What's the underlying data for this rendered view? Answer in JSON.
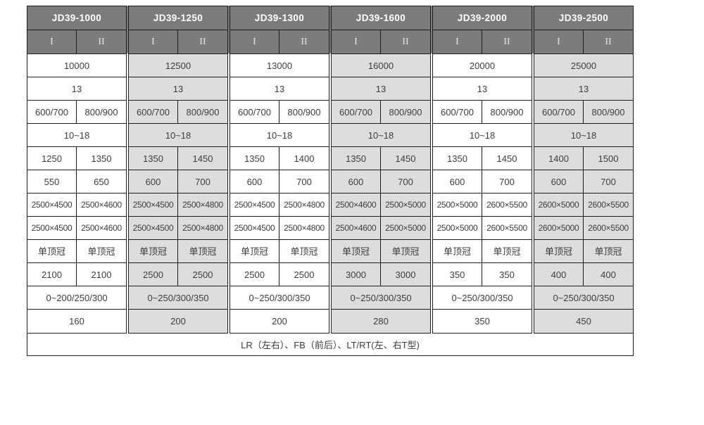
{
  "chart_data": {
    "type": "table",
    "column_groups": [
      {
        "model": "JD39-1000",
        "subcolumns": [
          "I",
          "II"
        ],
        "shaded": false
      },
      {
        "model": "JD39-1250",
        "subcolumns": [
          "I",
          "II"
        ],
        "shaded": true
      },
      {
        "model": "JD39-1300",
        "subcolumns": [
          "I",
          "II"
        ],
        "shaded": false
      },
      {
        "model": "JD39-1600",
        "subcolumns": [
          "I",
          "II"
        ],
        "shaded": true
      },
      {
        "model": "JD39-2000",
        "subcolumns": [
          "I",
          "II"
        ],
        "shaded": false
      },
      {
        "model": "JD39-2500",
        "subcolumns": [
          "I",
          "II"
        ],
        "shaded": true
      }
    ],
    "rows": [
      {
        "merged": true,
        "values": [
          "10000",
          "12500",
          "13000",
          "16000",
          "20000",
          "25000"
        ]
      },
      {
        "merged": true,
        "values": [
          "13",
          "13",
          "13",
          "13",
          "13",
          "13"
        ]
      },
      {
        "merged": false,
        "values": [
          [
            "600/700",
            "800/900"
          ],
          [
            "600/700",
            "800/900"
          ],
          [
            "600/700",
            "800/900"
          ],
          [
            "600/700",
            "800/900"
          ],
          [
            "600/700",
            "800/900"
          ],
          [
            "600/700",
            "800/900"
          ]
        ]
      },
      {
        "merged": true,
        "values": [
          "10~18",
          "10~18",
          "10~18",
          "10~18",
          "10~18",
          "10~18"
        ]
      },
      {
        "merged": false,
        "values": [
          [
            "1250",
            "1350"
          ],
          [
            "1350",
            "1450"
          ],
          [
            "1350",
            "1400"
          ],
          [
            "1350",
            "1450"
          ],
          [
            "1350",
            "1450"
          ],
          [
            "1400",
            "1500"
          ]
        ]
      },
      {
        "merged": false,
        "values": [
          [
            "550",
            "650"
          ],
          [
            "600",
            "700"
          ],
          [
            "600",
            "700"
          ],
          [
            "600",
            "700"
          ],
          [
            "600",
            "700"
          ],
          [
            "600",
            "700"
          ]
        ]
      },
      {
        "merged": false,
        "small": true,
        "values": [
          [
            "2500×4500",
            "2500×4600"
          ],
          [
            "2500×4500",
            "2500×4800"
          ],
          [
            "2500×4500",
            "2500×4800"
          ],
          [
            "2500×4600",
            "2500×5000"
          ],
          [
            "2500×5000",
            "2600×5500"
          ],
          [
            "2600×5000",
            "2600×5500"
          ]
        ]
      },
      {
        "merged": false,
        "small": true,
        "values": [
          [
            "2500×4500",
            "2500×4600"
          ],
          [
            "2500×4500",
            "2500×4800"
          ],
          [
            "2500×4500",
            "2500×4800"
          ],
          [
            "2500×4600",
            "2500×5000"
          ],
          [
            "2500×5000",
            "2600×5500"
          ],
          [
            "2600×5000",
            "2600×5500"
          ]
        ]
      },
      {
        "merged": false,
        "values": [
          [
            "单顶冠",
            "单顶冠"
          ],
          [
            "单顶冠",
            "单顶冠"
          ],
          [
            "单顶冠",
            "单顶冠"
          ],
          [
            "单顶冠",
            "单顶冠"
          ],
          [
            "单顶冠",
            "单顶冠"
          ],
          [
            "单顶冠",
            "单顶冠"
          ]
        ]
      },
      {
        "merged": false,
        "values": [
          [
            "2100",
            "2100"
          ],
          [
            "2500",
            "2500"
          ],
          [
            "2500",
            "2500"
          ],
          [
            "3000",
            "3000"
          ],
          [
            "350",
            "350"
          ],
          [
            "400",
            "400"
          ]
        ]
      },
      {
        "merged": true,
        "values": [
          "0~200/250/300",
          "0~250/300/350",
          "0~250/300/350",
          "0~250/300/350",
          "0~250/300/350",
          "0~250/300/350"
        ]
      },
      {
        "merged": true,
        "values": [
          "160",
          "200",
          "200",
          "280",
          "350",
          "450"
        ]
      }
    ],
    "footer": "LR（左右）、FB（前后）、LT/RT(左、右T型)"
  },
  "colors": {
    "header_bg": "#7c7c7c",
    "header_text": "#ffffff",
    "subheader_text": "#e4e4e4",
    "shaded_column_bg": "#dcdddf",
    "cell_bg": "#ffffff",
    "border": "#1c1c1c",
    "cell_text": "#3c3c3c",
    "page_bg": "#ffffff"
  }
}
